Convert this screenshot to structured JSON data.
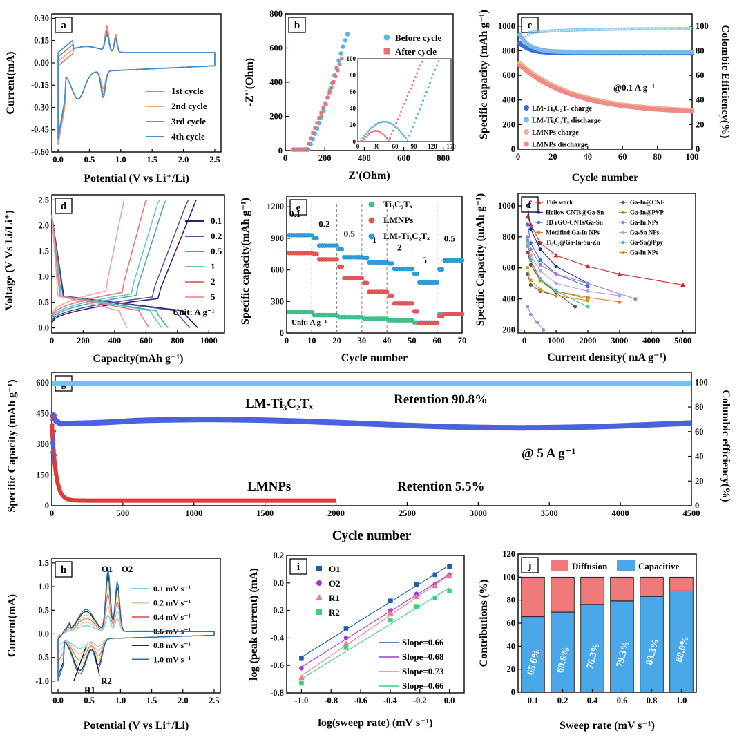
{
  "chart_data": [
    {
      "panel": "a",
      "type": "line",
      "xlabel": "Potential (V vs Li⁺/Li)",
      "ylabel": "Current(mA)",
      "xlim": [
        -0.1,
        2.6
      ],
      "ylim": [
        -0.6,
        0.33
      ],
      "xticks": [
        "0.0",
        "0.5",
        "1.0",
        "1.5",
        "2.0",
        "2.5"
      ],
      "yticks": [
        "-0.60",
        "-0.45",
        "-0.30",
        "-0.15",
        "0.00",
        "0.15",
        "0.30"
      ],
      "series": [
        {
          "name": "1st cycle",
          "color": "#e8736f"
        },
        {
          "name": "2nd cycle",
          "color": "#f2a66b"
        },
        {
          "name": "3rd cycle",
          "color": "#8a8a8a"
        },
        {
          "name": "4th cycle",
          "color": "#3d8fd6"
        }
      ],
      "legend": "bottom-right"
    },
    {
      "panel": "b",
      "type": "scatter",
      "xlabel": "Z'(Ohm)",
      "ylabel": "-Z''(Ohm)",
      "xlim": [
        0,
        850
      ],
      "ylim": [
        0,
        800
      ],
      "xticks": [
        "0",
        "200",
        "400",
        "600",
        "800"
      ],
      "yticks": [
        "0",
        "200",
        "400",
        "600",
        "800"
      ],
      "series": [
        {
          "name": "Before cycle",
          "color": "#5fb3e4"
        },
        {
          "name": "After cycle",
          "color": "#e8736f"
        }
      ],
      "inset": {
        "xticks": [
          "0",
          "30",
          "60",
          "90",
          "120",
          "150"
        ],
        "yticks": [
          "0",
          "20",
          "40",
          "60",
          "80",
          "100"
        ]
      },
      "legend": "top-right"
    },
    {
      "panel": "c",
      "type": "scatter",
      "xlabel": "Cycle number",
      "ylabel": "Specific capacity (mAh g⁻¹)",
      "y2label": "Colombic Efficiency(%)",
      "xlim": [
        0,
        100
      ],
      "ylim": [
        0,
        1100
      ],
      "y2lim": [
        0,
        110
      ],
      "xticks": [
        "0",
        "20",
        "40",
        "60",
        "80",
        "100"
      ],
      "yticks": [
        "0",
        "200",
        "400",
        "600",
        "800",
        "1000"
      ],
      "y2ticks": [
        "0",
        "20",
        "40",
        "60",
        "80",
        "100"
      ],
      "series": [
        {
          "name": "LM-Ti₃C₂Tₓ charge",
          "color": "#3a6fd8",
          "start": 860,
          "end": 780
        },
        {
          "name": "LM-Ti₃C₂Tₓ discharge",
          "color": "#7fb8e8",
          "start": 930,
          "end": 790
        },
        {
          "name": "LMNPs charge",
          "color": "#f0b48a",
          "start": 700,
          "end": 300
        },
        {
          "name": "LMNPs discharge",
          "color": "#f08a8a",
          "start": 680,
          "end": 290
        }
      ],
      "annotation": "@0.1 A g⁻¹",
      "legend": "bottom-left"
    },
    {
      "panel": "d",
      "type": "line",
      "xlabel": "Capacity(mAh g⁻¹)",
      "ylabel": "Voltage (V Vs Li/Li⁺)",
      "xlim": [
        0,
        1100
      ],
      "ylim": [
        -0.1,
        2.6
      ],
      "xticks": [
        "0",
        "200",
        "400",
        "600",
        "800",
        "1000"
      ],
      "yticks": [
        "0.0",
        "0.5",
        "1.0",
        "1.5",
        "2.0",
        "2.5"
      ],
      "series": [
        {
          "name": "0.1",
          "color": "#2a2068",
          "capacity": 930
        },
        {
          "name": "0.2",
          "color": "#5a4fa8",
          "capacity": 880
        },
        {
          "name": "0.5",
          "color": "#3fae9a",
          "capacity": 740
        },
        {
          "name": "1",
          "color": "#5fc3d8",
          "capacity": 700
        },
        {
          "name": "2",
          "color": "#e8736f",
          "capacity": 620
        },
        {
          "name": "5",
          "color": "#f0a0a0",
          "capacity": 480
        }
      ],
      "annotation": "Unit: A g⁻¹",
      "legend": "right"
    },
    {
      "panel": "e",
      "type": "scatter",
      "xlabel": "Cycle  number",
      "ylabel": "Specific capacity(mAh g⁻¹)",
      "xlim": [
        0,
        70
      ],
      "ylim": [
        0,
        1300
      ],
      "xticks": [
        "0",
        "10",
        "20",
        "30",
        "40",
        "50",
        "60",
        "70"
      ],
      "yticks": [
        "0",
        "300",
        "600",
        "900",
        "1200"
      ],
      "rates": [
        "0.1",
        "0.2",
        "0.5",
        "1",
        "2",
        "5",
        "0.5"
      ],
      "series": [
        {
          "name": "Ti₃C₂Tₓ",
          "color": "#3fc08a",
          "values": [
            200,
            170,
            150,
            135,
            120,
            100,
            180
          ]
        },
        {
          "name": "LMNPs",
          "color": "#e05555",
          "values": [
            760,
            700,
            520,
            390,
            280,
            95,
            180
          ]
        },
        {
          "name": "LM-Ti₃C₂Tₓ",
          "color": "#2f9bd6",
          "values": [
            930,
            830,
            720,
            670,
            610,
            480,
            690
          ]
        }
      ],
      "annotation": "Unit: A g⁻¹",
      "legend": "top-right"
    },
    {
      "panel": "f",
      "type": "line",
      "xlabel": "Current density( mA g⁻¹)",
      "ylabel": "Specific Capacity (mAh g⁻¹)",
      "xlim": [
        -200,
        5400
      ],
      "ylim": [
        180,
        1080
      ],
      "xticks": [
        "0",
        "1000",
        "2000",
        "3000",
        "4000",
        "5000"
      ],
      "yticks": [
        "200",
        "400",
        "600",
        "800",
        "1000"
      ],
      "series": [
        {
          "name": "This work",
          "color": "#d42a2a",
          "x": [
            100,
            200,
            500,
            1000,
            2000,
            3000,
            5000
          ],
          "y": [
            930,
            880,
            760,
            680,
            610,
            560,
            490
          ]
        },
        {
          "name": "Hollow CNTs@Ga-Sn",
          "color": "#1a2a8a",
          "x": [
            100,
            200,
            500,
            1000,
            2000
          ],
          "y": [
            1000,
            850,
            720,
            610,
            500
          ]
        },
        {
          "name": "3D rGO-CNTs/Ga-Sn",
          "color": "#3a6fd8",
          "x": [
            100,
            200,
            500,
            1000,
            2000
          ],
          "y": [
            880,
            760,
            650,
            560,
            480
          ]
        },
        {
          "name": "Modified Ga-In NPs",
          "color": "#f07a3a",
          "x": [
            100,
            200,
            500,
            1000,
            2000,
            3000
          ],
          "y": [
            740,
            620,
            520,
            450,
            410,
            380
          ]
        },
        {
          "name": "Ti₃C₂@Ga-In-Sn-Zn",
          "color": "#555555",
          "x": [
            100,
            200,
            500,
            1000
          ],
          "y": [
            560,
            490,
            450,
            420
          ]
        },
        {
          "name": "Ga-In@CNF",
          "color": "#7a4a3a",
          "x": [
            100,
            200,
            500,
            1000,
            1600
          ],
          "y": [
            700,
            620,
            520,
            440,
            350
          ]
        },
        {
          "name": "Ga-In@PVP",
          "color": "#9a9a20",
          "x": [
            100,
            200,
            500,
            1000,
            2000
          ],
          "y": [
            760,
            650,
            520,
            450,
            400
          ]
        },
        {
          "name": "Ga-In NPs",
          "color": "#a07ad8",
          "x": [
            100,
            200,
            500,
            1000,
            2000,
            3500
          ],
          "y": [
            800,
            720,
            620,
            560,
            500,
            400
          ]
        },
        {
          "name": "Ga-Sn NPs",
          "color": "#b89ae8",
          "x": [
            100,
            200,
            500,
            1000,
            2000,
            3000
          ],
          "y": [
            760,
            680,
            580,
            500,
            450,
            420
          ]
        },
        {
          "name": "Ga-Sn@Ppy",
          "color": "#3fc0b0",
          "x": [
            100,
            200,
            500,
            1000,
            2000
          ],
          "y": [
            780,
            650,
            530,
            450,
            350
          ]
        },
        {
          "name": "Ga-In NPs",
          "color": "#c8a020",
          "x": [
            100,
            200,
            500,
            1000,
            2000
          ],
          "y": [
            600,
            520,
            460,
            420,
            390
          ]
        },
        {
          "name": "",
          "color": "#8a9ad8",
          "x": [
            100,
            200,
            400,
            600
          ],
          "y": [
            350,
            300,
            250,
            200
          ]
        }
      ],
      "legend": "top-right"
    },
    {
      "panel": "g",
      "type": "scatter",
      "xlabel": "Cycle number",
      "ylabel": "Specific Capacity (mAh g⁻¹)",
      "y2label": "Columbic efficiency(%)",
      "xlim": [
        0,
        4500
      ],
      "ylim": [
        0,
        650
      ],
      "y2lim": [
        0,
        108
      ],
      "xticks": [
        "0",
        "500",
        "1000",
        "1500",
        "2000",
        "2500",
        "3000",
        "3500",
        "4000",
        "4500"
      ],
      "yticks": [
        "0",
        "150",
        "300",
        "450",
        "600"
      ],
      "y2ticks": [
        "0",
        "20",
        "40",
        "60",
        "80",
        "100"
      ],
      "series": [
        {
          "name": "LM-Ti₃C₂Tₓ",
          "color": "#4a62e0",
          "start": 450,
          "plateau": 400,
          "end": 410
        },
        {
          "name": "LMNPs",
          "color": "#e03a3a",
          "start": 400,
          "plateau": 25,
          "end_cycle": 2000
        },
        {
          "name": "Columbic efficiency",
          "color": "#6ec4f0",
          "value": 99
        }
      ],
      "annotations": [
        "LM-Ti₃C₂Tₓ",
        "Retention 90.8%",
        "@ 5 A g⁻¹",
        "LMNPs",
        "Retention 5.5%"
      ]
    },
    {
      "panel": "h",
      "type": "line",
      "xlabel": "Potential (V vs Li⁺/Li)",
      "ylabel": "Current(mA)",
      "xlim": [
        -0.1,
        2.6
      ],
      "ylim": [
        -1.25,
        1.6
      ],
      "xticks": [
        "0.0",
        "0.5",
        "1.0",
        "1.5",
        "2.0",
        "2.5"
      ],
      "yticks": [
        "-1.0",
        "-0.5",
        "0.0",
        "0.5",
        "1.0",
        "1.5"
      ],
      "series": [
        {
          "name": "0.1 mV s⁻¹",
          "color": "#7ad0e8",
          "peak": 0.35
        },
        {
          "name": "0.2 mV s⁻¹",
          "color": "#f0c0a0",
          "peak": 0.55
        },
        {
          "name": "0.4 mV s⁻¹",
          "color": "#e8736f",
          "peak": 0.8
        },
        {
          "name": "0.6 mV s⁻¹",
          "color": "#d8d890",
          "peak": 1.0
        },
        {
          "name": "0.8 mV s⁻¹",
          "color": "#2a2a3a",
          "peak": 1.2
        },
        {
          "name": "1.0 mV s⁻¹",
          "color": "#2a6fb0",
          "peak": 1.33
        }
      ],
      "annotations": [
        "O1",
        "O2",
        "R1",
        "R2"
      ],
      "legend": "right"
    },
    {
      "panel": "i",
      "type": "scatter",
      "xlabel": "log(sweep rate) (mV s⁻¹)",
      "ylabel": "log (peak current) (mA)",
      "xlim": [
        -1.1,
        0.1
      ],
      "ylim": [
        -0.8,
        0.2
      ],
      "xticks": [
        "-1.0",
        "-0.8",
        "-0.6",
        "-0.4",
        "-0.2",
        "0.0"
      ],
      "yticks": [
        "-0.8",
        "-0.6",
        "-0.4",
        "-0.2",
        "0.0",
        "0.2"
      ],
      "x": [
        -1.0,
        -0.699,
        -0.398,
        -0.222,
        -0.097,
        0.0
      ],
      "series": [
        {
          "name": "O1",
          "color": "#1a5fa8",
          "marker": "square",
          "y": [
            -0.55,
            -0.33,
            -0.13,
            -0.01,
            0.06,
            0.12
          ],
          "fit": "Slope=0.66"
        },
        {
          "name": "O2",
          "color": "#9a3ad8",
          "marker": "circle",
          "y": [
            -0.62,
            -0.4,
            -0.2,
            -0.08,
            -0.01,
            0.06
          ],
          "fit": "Slope=0.68"
        },
        {
          "name": "R1",
          "color": "#f07a8a",
          "marker": "triangle",
          "y": [
            -0.69,
            -0.44,
            -0.22,
            -0.1,
            -0.02,
            0.05
          ],
          "fit": "Slope=0.73"
        },
        {
          "name": "R2",
          "color": "#3ad07a",
          "marker": "square",
          "y": [
            -0.73,
            -0.47,
            -0.27,
            -0.17,
            -0.11,
            -0.06
          ],
          "fit": "Slope=0.66"
        }
      ],
      "legend": "top-left"
    },
    {
      "panel": "j",
      "type": "bar",
      "xlabel": "Sweep rate (mV s⁻¹)",
      "ylabel": "Contributions (%)",
      "ylim": [
        0,
        120
      ],
      "categories": [
        "0.1",
        "0.2",
        "0.4",
        "0.6",
        "0.8",
        "1.0"
      ],
      "yticks": [
        "0",
        "20",
        "40",
        "60",
        "80",
        "100",
        "120"
      ],
      "series": [
        {
          "name": "Capacitive",
          "color": "#4aa8e8",
          "values": [
            65.6,
            69.6,
            76.3,
            79.3,
            83.3,
            88.0
          ]
        },
        {
          "name": "Diffusion",
          "color": "#f07a7a",
          "values": [
            34.4,
            30.4,
            23.7,
            20.7,
            16.7,
            12.0
          ]
        }
      ],
      "labels": [
        "65.6%",
        "69.6%",
        "76.3%",
        "79.3%",
        "83.3%",
        "88.0%"
      ],
      "legend": "top"
    }
  ]
}
